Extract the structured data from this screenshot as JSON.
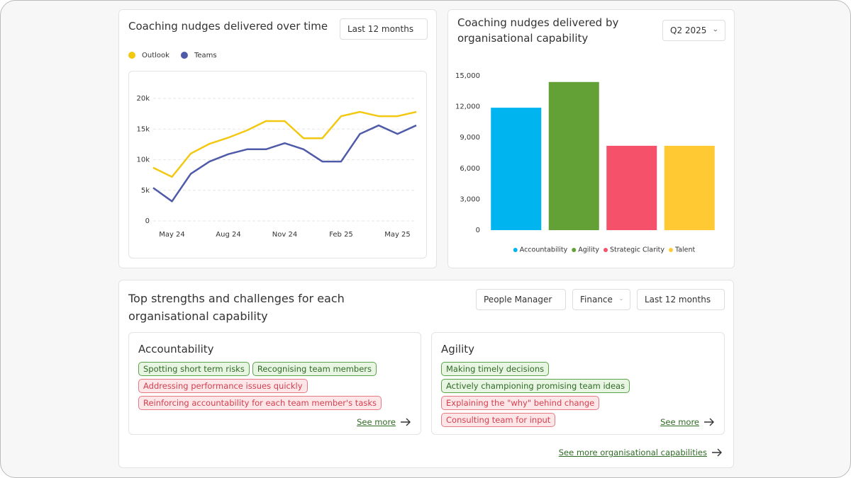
{
  "chart_data": [
    {
      "type": "line",
      "title": "Coaching nudges delivered over time",
      "filter": "Last 12 months",
      "categories": [
        null,
        "May 24",
        null,
        null,
        "Aug 24",
        null,
        null,
        "Nov 24",
        null,
        null,
        "Feb 25",
        null,
        null,
        "May 25",
        null
      ],
      "series": [
        {
          "name": "Outlook",
          "color": "#f2c811",
          "values": [
            8700,
            7200,
            11000,
            12600,
            13600,
            14800,
            16300,
            16300,
            13500,
            13500,
            17100,
            17800,
            17100,
            17100,
            17800
          ]
        },
        {
          "name": "Teams",
          "color": "#4f5aa8",
          "values": [
            5400,
            3200,
            7700,
            9700,
            10900,
            11700,
            11700,
            12700,
            11700,
            9700,
            9700,
            14200,
            15600,
            14200,
            15600
          ]
        }
      ],
      "ylim": [
        0,
        20000
      ],
      "yticks": [
        0,
        {
          "value": 5000,
          "label": "5k"
        },
        {
          "value": 10000,
          "label": "10k"
        },
        {
          "value": 15000,
          "label": "15k"
        },
        {
          "value": 20000,
          "label": "20k"
        }
      ],
      "grid": true,
      "legend": "top"
    },
    {
      "type": "bar",
      "title": "Coaching nudges delivered by organisational capability",
      "filter": "Q2 2025",
      "categories": [
        "Accountability",
        "Agility",
        "Strategic Clarity",
        "Talent"
      ],
      "values": [
        11900,
        14400,
        8200,
        8200
      ],
      "colors": [
        "#00b4f0",
        "#63a136",
        "#f5516a",
        "#ffc933"
      ],
      "ylim": [
        0,
        17000
      ],
      "yticks": [
        0,
        {
          "value": 3000,
          "label": "3,000"
        },
        {
          "value": 6000,
          "label": "6,000"
        },
        {
          "value": 9000,
          "label": "9,000"
        },
        {
          "value": 12000,
          "label": "12,000"
        },
        {
          "value": 15000,
          "label": "15,000"
        }
      ],
      "grid": false,
      "legend": "bottom"
    }
  ],
  "capabilities": {
    "title": "Top strengths and challenges for each organisational capability",
    "filters": [
      "People Manager",
      "Finance",
      "Last 12 months"
    ],
    "cards": [
      {
        "name": "Accountability",
        "strengths": [
          "Spotting short term risks",
          "Recognising team members"
        ],
        "challenges": [
          "Addressing performance issues quickly",
          "Reinforcing accountability for each team member's tasks"
        ],
        "link": "See more"
      },
      {
        "name": "Agility",
        "strengths": [
          "Making timely decisions",
          "Actively championing promising team ideas"
        ],
        "challenges": [
          "Explaining the \"why\" behind change",
          "Consulting team for input"
        ],
        "link": "See more"
      }
    ],
    "link": "See more organisational capabilities"
  }
}
